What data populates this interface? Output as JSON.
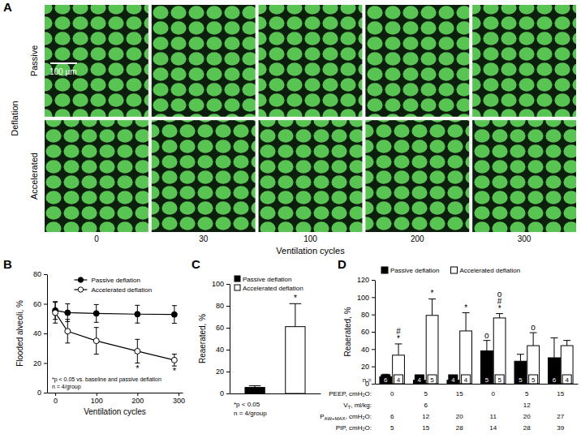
{
  "panel_a": {
    "title": "A",
    "row_group_label": "Deflation",
    "row_labels": [
      "Passive",
      "Accelerated"
    ],
    "columns": [
      0,
      30,
      100,
      200,
      300
    ],
    "x_label": "Ventilation cycles",
    "scale_bar": "100 µm"
  },
  "chart_data": [
    {
      "type": "line",
      "title": "B",
      "x_label": "Ventilation cycles",
      "y_label": "Flooded alveoli, %",
      "x": [
        0,
        30,
        100,
        200,
        290
      ],
      "xlim": [
        -20,
        310
      ],
      "xticks": [
        0,
        100,
        200,
        300
      ],
      "ylim": [
        0,
        80
      ],
      "yticks": [
        0,
        20,
        40,
        60,
        80
      ],
      "series": [
        {
          "name": "Passive deflation",
          "color": "#000000",
          "marker": "circle",
          "values": [
            55.5,
            54,
            53.5,
            53,
            52.8
          ],
          "errors": [
            6,
            6,
            6,
            6,
            6
          ],
          "significance": [
            [],
            [],
            [],
            [],
            []
          ]
        },
        {
          "name": "Accelerated deflation",
          "color": "#000000",
          "marker": "circle-open",
          "values": [
            54,
            41.5,
            35,
            28,
            22
          ],
          "errors": [
            7,
            8,
            9,
            8,
            4
          ],
          "significance": [
            [],
            [],
            [],
            [
              "*"
            ],
            [
              "*"
            ]
          ]
        }
      ],
      "legend": "top",
      "annotations": [
        "*p < 0.05 vs. baseline and passive deflation",
        "n = 4/group"
      ]
    },
    {
      "type": "bar",
      "title": "C",
      "y_label": "Reaerated, %",
      "categories": [
        "Passive deflation",
        "Accelerated deflation"
      ],
      "values": [
        5.5,
        61
      ],
      "errors": [
        1.5,
        21
      ],
      "colors": [
        "#000000",
        "#ffffff"
      ],
      "significance": [
        [],
        [
          "*"
        ]
      ],
      "ylim": [
        0,
        100
      ],
      "yticks": [
        0,
        20,
        40,
        60,
        80,
        100
      ],
      "legend": "top-left",
      "tick_labels": "y",
      "annotations": [
        "*p < 0.05",
        "n = 4/group"
      ]
    },
    {
      "type": "bar",
      "title": "D",
      "y_label": "Reaerated, %",
      "categories": [
        null,
        null,
        null,
        null,
        null,
        null
      ],
      "ylim": [
        0,
        120
      ],
      "yticks": [
        0,
        20,
        40,
        60,
        80,
        100,
        120
      ],
      "legend": "outside-top",
      "tick_labels": "y",
      "series": [
        {
          "name": "Passive deflation",
          "color": "#000000",
          "values": [
            8,
            4,
            4,
            38,
            26,
            30
          ],
          "errors": [
            3,
            1.5,
            1.5,
            12,
            8,
            23
          ],
          "n": [
            6,
            4,
            4,
            5,
            5,
            6
          ],
          "significance": [
            [],
            [],
            [],
            [
              "o"
            ],
            [],
            []
          ]
        },
        {
          "name": "Accelerated deflation",
          "color": "#ffffff",
          "values": [
            33,
            79,
            61,
            76,
            44,
            44
          ],
          "errors": [
            13,
            19,
            21,
            5,
            15,
            6
          ],
          "n": [
            4,
            5,
            4,
            5,
            5,
            4
          ],
          "significance": [
            [
              "#",
              "*"
            ],
            [
              "*"
            ],
            [
              "*"
            ],
            [
              "o",
              "#",
              "*"
            ],
            [
              "o"
            ],
            []
          ]
        }
      ],
      "n_label": "n =",
      "table": [
        {
          "label": "PEEP, cmH₂O:",
          "values": [
            0,
            5,
            15,
            0,
            5,
            15
          ]
        },
        {
          "label": "V",
          "subscript": "T",
          "suffix": ", ml/kg:",
          "values": [
            null,
            6,
            null,
            null,
            12,
            null
          ]
        },
        {
          "label": "P",
          "subscript": "AW+MAX",
          "suffix": ", cmH₂O:",
          "values": [
            6,
            12,
            20,
            11,
            20,
            27
          ]
        },
        {
          "label": "PIP, cmH₂O:",
          "values": [
            5,
            15,
            28,
            14,
            28,
            39
          ]
        }
      ]
    }
  ]
}
